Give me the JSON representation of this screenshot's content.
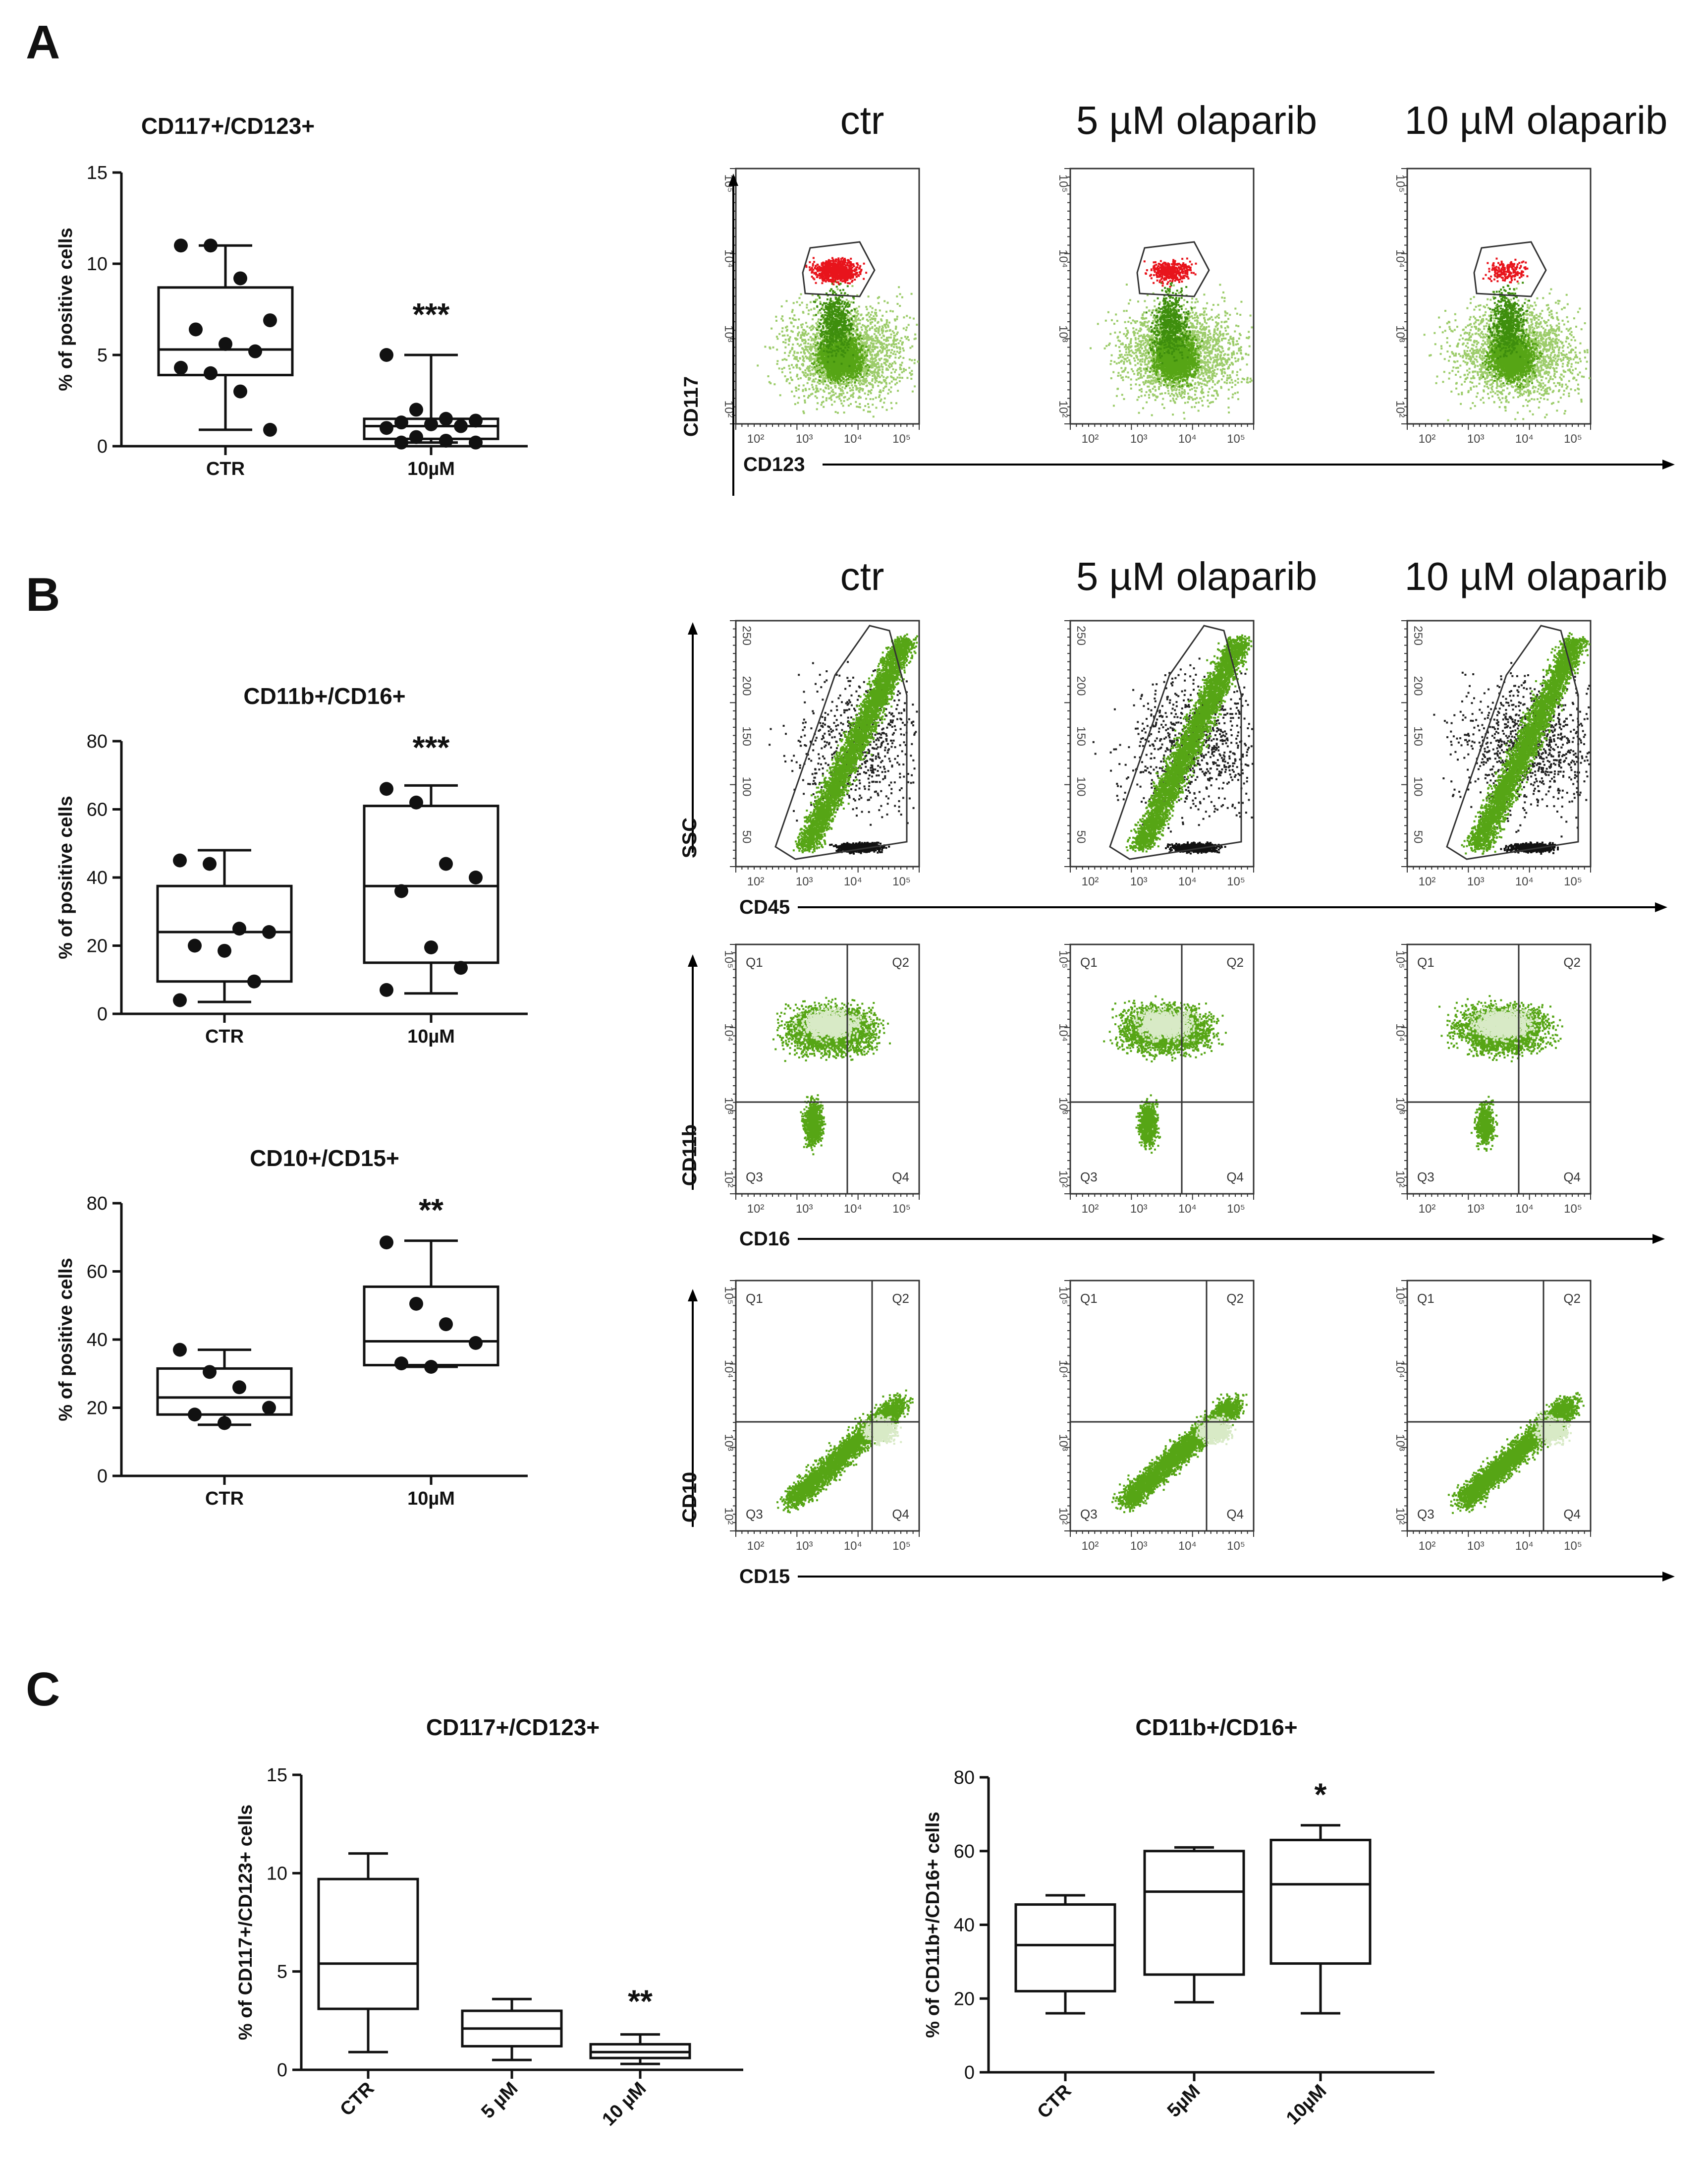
{
  "panels": {
    "A": {
      "letter": "A"
    },
    "B": {
      "letter": "B"
    },
    "C": {
      "letter": "C"
    }
  },
  "conditions": [
    "ctr",
    "5 µM olaparib",
    "10 µM olaparib"
  ],
  "colors": {
    "red": "#e8141c",
    "green": "#56a515",
    "dark": "#111111",
    "black": "#000000"
  },
  "flow": {
    "rowA": {
      "y_label": "CD117",
      "x_label": "CD123",
      "decades": [
        "10²",
        "10³",
        "10⁴",
        "10⁵"
      ]
    },
    "rowB1": {
      "y_label": "SSC",
      "x_label": "CD45",
      "y_ticks": [
        "50",
        "100",
        "150",
        "200",
        "250"
      ],
      "x_ticks": [
        "10²",
        "10³",
        "10⁴",
        "10⁵"
      ]
    },
    "rowB2": {
      "y_label": "CD11b",
      "x_label": "CD16",
      "quadrants": [
        "Q1",
        "Q2",
        "Q3",
        "Q4"
      ],
      "ticks": [
        "10²",
        "10³",
        "10⁴",
        "10⁵"
      ]
    },
    "rowB3": {
      "y_label": "CD10",
      "x_label": "CD15",
      "quadrants": [
        "Q1",
        "Q2",
        "Q3",
        "Q4"
      ],
      "ticks": [
        "10²",
        "10³",
        "10⁴",
        "10⁵"
      ]
    }
  },
  "chart_data": [
    {
      "id": "A_box",
      "type": "box",
      "title": "CD117+/CD123+",
      "ylabel": "% of positive cells",
      "ylim": [
        0,
        15
      ],
      "yticks": [
        0,
        5,
        10,
        15
      ],
      "categories": [
        "CTR",
        "10µM"
      ],
      "boxes": [
        {
          "min": 0.9,
          "q1": 3.9,
          "median": 5.3,
          "q3": 8.7,
          "max": 11.0
        },
        {
          "min": 0.2,
          "q1": 0.4,
          "median": 1.1,
          "q3": 1.5,
          "max": 5.0
        }
      ],
      "points": [
        [
          11.0,
          11.0,
          9.2,
          6.9,
          6.4,
          5.6,
          5.2,
          4.3,
          4.0,
          3.0,
          0.9
        ],
        [
          5.0,
          2.0,
          1.5,
          1.4,
          1.3,
          1.2,
          1.1,
          1.0,
          0.5,
          0.3,
          0.2,
          0.2
        ]
      ],
      "annotations": [
        {
          "category": "10µM",
          "text": "***"
        }
      ]
    },
    {
      "id": "B_box1",
      "type": "box",
      "title": "CD11b+/CD16+",
      "ylabel": "% of positive cells",
      "ylim": [
        0,
        80
      ],
      "yticks": [
        0,
        20,
        40,
        60,
        80
      ],
      "categories": [
        "CTR",
        "10µM"
      ],
      "boxes": [
        {
          "min": 3.5,
          "q1": 9.5,
          "median": 24.0,
          "q3": 37.5,
          "max": 48.0
        },
        {
          "min": 6.0,
          "q1": 15.0,
          "median": 37.5,
          "q3": 61.0,
          "max": 67.0
        }
      ],
      "points": [
        [
          45.0,
          44.0,
          25.0,
          24.0,
          20.0,
          18.5,
          9.5,
          4.0
        ],
        [
          66.0,
          62.0,
          44.0,
          40.0,
          36.0,
          19.5,
          13.5,
          7.0
        ]
      ],
      "annotations": [
        {
          "category": "10µM",
          "text": "***"
        }
      ]
    },
    {
      "id": "B_box2",
      "type": "box",
      "title": "CD10+/CD15+",
      "ylabel": "% of positive cells",
      "ylim": [
        0,
        80
      ],
      "yticks": [
        0,
        20,
        40,
        60,
        80
      ],
      "categories": [
        "CTR",
        "10µM"
      ],
      "boxes": [
        {
          "min": 15.0,
          "q1": 18.0,
          "median": 23.0,
          "q3": 31.5,
          "max": 37.0
        },
        {
          "min": 32.0,
          "q1": 32.5,
          "median": 39.5,
          "q3": 55.5,
          "max": 69.0
        }
      ],
      "points": [
        [
          37.0,
          30.5,
          26.0,
          20.0,
          18.0,
          15.5
        ],
        [
          68.5,
          50.5,
          44.5,
          39.0,
          33.0,
          32.0
        ]
      ],
      "annotations": [
        {
          "category": "10µM",
          "text": "**"
        }
      ]
    },
    {
      "id": "C_box1",
      "type": "box",
      "title": "CD117+/CD123+",
      "ylabel": "% of CD117+/CD123+ cells",
      "ylim": [
        0,
        15
      ],
      "yticks": [
        0,
        5,
        10,
        15
      ],
      "categories": [
        "CTR",
        "5 µM",
        "10 µM"
      ],
      "boxes": [
        {
          "min": 0.9,
          "q1": 3.1,
          "median": 5.4,
          "q3": 9.7,
          "max": 11.0
        },
        {
          "min": 0.5,
          "q1": 1.2,
          "median": 2.1,
          "q3": 3.0,
          "max": 3.6
        },
        {
          "min": 0.3,
          "q1": 0.6,
          "median": 0.9,
          "q3": 1.3,
          "max": 1.8
        }
      ],
      "annotations": [
        {
          "category": "10 µM",
          "text": "**"
        }
      ]
    },
    {
      "id": "C_box2",
      "type": "box",
      "title": "CD11b+/CD16+",
      "ylabel": "% of CD11b+/CD16+ cells",
      "ylim": [
        0,
        80
      ],
      "yticks": [
        0,
        20,
        40,
        60,
        80
      ],
      "categories": [
        "CTR",
        "5µM",
        "10µM"
      ],
      "boxes": [
        {
          "min": 16.0,
          "q1": 22.0,
          "median": 34.5,
          "q3": 45.5,
          "max": 48.0
        },
        {
          "min": 19.0,
          "q1": 26.5,
          "median": 49.0,
          "q3": 60.0,
          "max": 61.0
        },
        {
          "min": 16.0,
          "q1": 29.5,
          "median": 51.0,
          "q3": 63.0,
          "max": 67.0
        }
      ],
      "annotations": [
        {
          "category": "10µM",
          "text": "*"
        }
      ]
    }
  ]
}
